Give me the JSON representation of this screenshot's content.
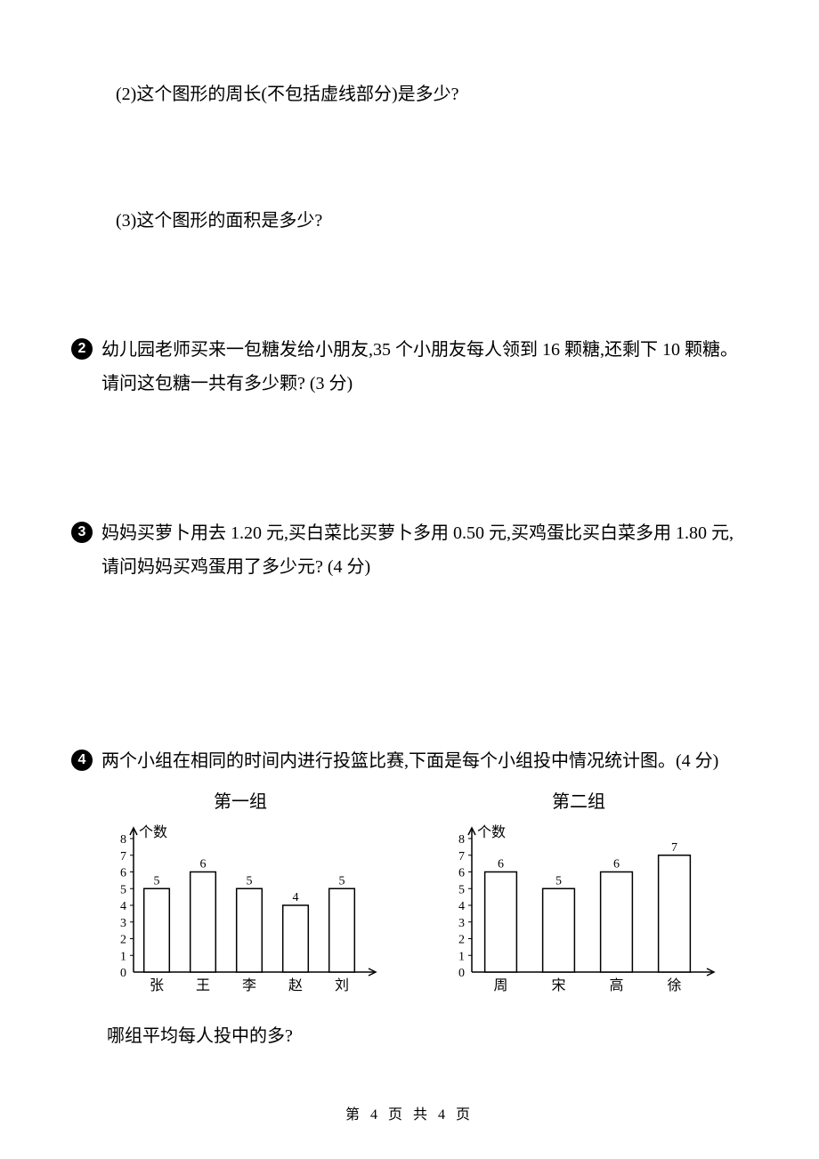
{
  "sub_questions": {
    "q2": "(2)这个图形的周长(不包括虚线部分)是多少?",
    "q3": "(3)这个图形的面积是多少?"
  },
  "questions": {
    "q2": {
      "num": "2",
      "text": "幼儿园老师买来一包糖发给小朋友,35 个小朋友每人领到 16 颗糖,还剩下 10 颗糖。请问这包糖一共有多少颗?  (3 分)"
    },
    "q3": {
      "num": "3",
      "text": "妈妈买萝卜用去 1.20 元,买白菜比买萝卜多用 0.50 元,买鸡蛋比买白菜多用 1.80 元,请问妈妈买鸡蛋用了多少元?  (4 分)"
    },
    "q4": {
      "num": "4",
      "text": "两个小组在相同的时间内进行投篮比赛,下面是每个小组投中情况统计图。(4 分)",
      "follow": "哪组平均每人投中的多?"
    }
  },
  "chart1": {
    "title": "第一组",
    "ylabel": "个数",
    "ymax": 8,
    "yticks": [
      0,
      1,
      2,
      3,
      4,
      5,
      6,
      7,
      8
    ],
    "categories": [
      "张",
      "王",
      "李",
      "赵",
      "刘"
    ],
    "values": [
      5,
      6,
      5,
      4,
      5
    ],
    "bar_fill": "#ffffff",
    "bar_stroke": "#000000",
    "axis_color": "#000000"
  },
  "chart2": {
    "title": "第二组",
    "ylabel": "个数",
    "ymax": 8,
    "yticks": [
      0,
      1,
      2,
      3,
      4,
      5,
      6,
      7,
      8
    ],
    "categories": [
      "周",
      "宋",
      "高",
      "徐"
    ],
    "values": [
      6,
      5,
      6,
      7
    ],
    "bar_fill": "#ffffff",
    "bar_stroke": "#000000",
    "axis_color": "#000000"
  },
  "footer": "第 4 页 共 4 页"
}
